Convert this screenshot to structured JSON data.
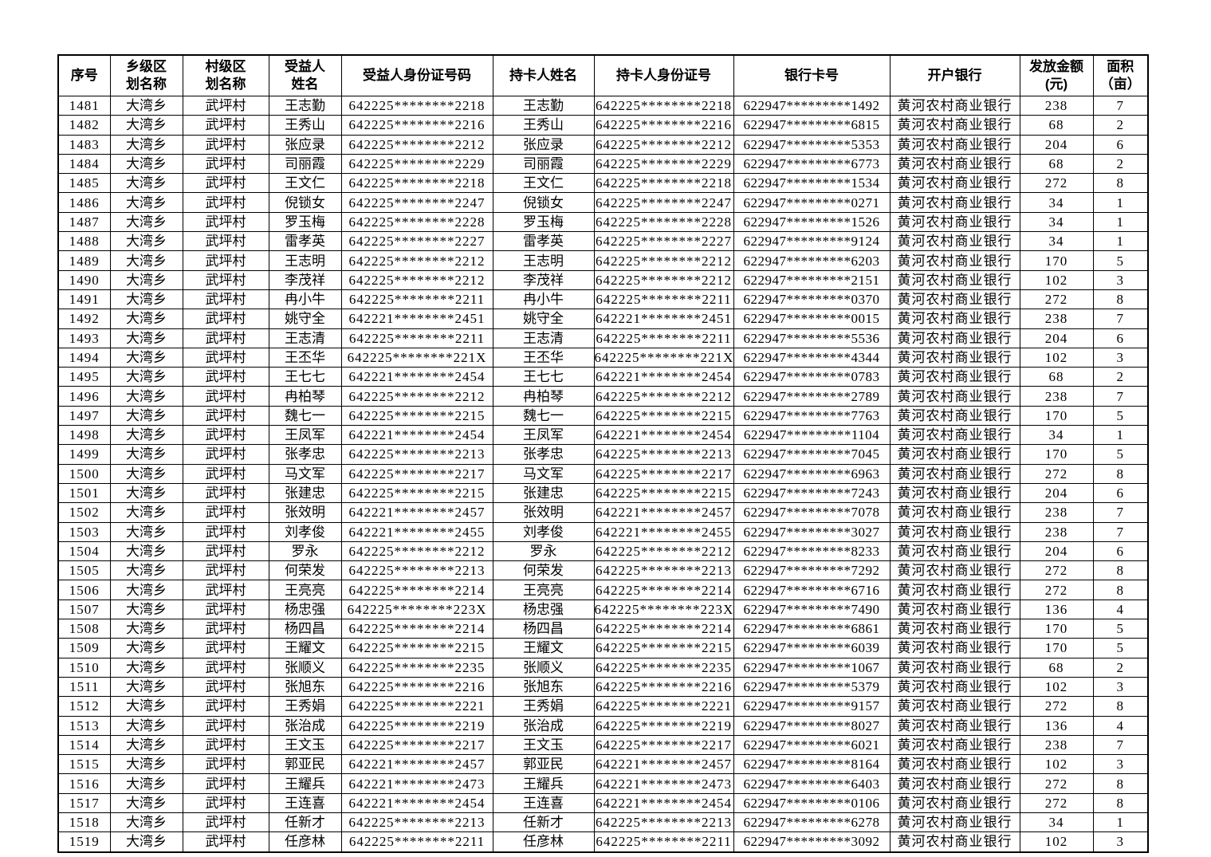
{
  "page": {
    "background_color": "#ffffff",
    "text_color": "#000000",
    "border_color": "#000000"
  },
  "table": {
    "headers": [
      "序号",
      "乡级区\n划名称",
      "村级区\n划名称",
      "受益人\n姓名",
      "受益人身份证号码",
      "持卡人姓名",
      "持卡人身份证号",
      "银行卡号",
      "开户银行",
      "发放金额\n(元)",
      "面积\n（亩）"
    ],
    "column_names": [
      "cell-serial-number",
      "cell-township-name",
      "cell-village-name",
      "cell-beneficiary-name",
      "cell-beneficiary-id-number",
      "cell-cardholder-name",
      "cell-cardholder-id-number",
      "cell-bank-card-number",
      "cell-bank-name",
      "cell-amount-yuan",
      "cell-area-mu"
    ],
    "rows": [
      [
        "1481",
        "大湾乡",
        "武坪村",
        "王志勤",
        "642225********2218",
        "王志勤",
        "642225********2218",
        "622947*********1492",
        "黄河农村商业银行",
        "238",
        "7"
      ],
      [
        "1482",
        "大湾乡",
        "武坪村",
        "王秀山",
        "642225********2216",
        "王秀山",
        "642225********2216",
        "622947*********6815",
        "黄河农村商业银行",
        "68",
        "2"
      ],
      [
        "1483",
        "大湾乡",
        "武坪村",
        "张应录",
        "642225********2212",
        "张应录",
        "642225********2212",
        "622947*********5353",
        "黄河农村商业银行",
        "204",
        "6"
      ],
      [
        "1484",
        "大湾乡",
        "武坪村",
        "司丽霞",
        "642225********2229",
        "司丽霞",
        "642225********2229",
        "622947*********6773",
        "黄河农村商业银行",
        "68",
        "2"
      ],
      [
        "1485",
        "大湾乡",
        "武坪村",
        "王文仁",
        "642225********2218",
        "王文仁",
        "642225********2218",
        "622947*********1534",
        "黄河农村商业银行",
        "272",
        "8"
      ],
      [
        "1486",
        "大湾乡",
        "武坪村",
        "倪锁女",
        "642225********2247",
        "倪锁女",
        "642225********2247",
        "622947*********0271",
        "黄河农村商业银行",
        "34",
        "1"
      ],
      [
        "1487",
        "大湾乡",
        "武坪村",
        "罗玉梅",
        "642225********2228",
        "罗玉梅",
        "642225********2228",
        "622947*********1526",
        "黄河农村商业银行",
        "34",
        "1"
      ],
      [
        "1488",
        "大湾乡",
        "武坪村",
        "雷孝英",
        "642225********2227",
        "雷孝英",
        "642225********2227",
        "622947*********9124",
        "黄河农村商业银行",
        "34",
        "1"
      ],
      [
        "1489",
        "大湾乡",
        "武坪村",
        "王志明",
        "642225********2212",
        "王志明",
        "642225********2212",
        "622947*********6203",
        "黄河农村商业银行",
        "170",
        "5"
      ],
      [
        "1490",
        "大湾乡",
        "武坪村",
        "李茂祥",
        "642225********2212",
        "李茂祥",
        "642225********2212",
        "622947*********2151",
        "黄河农村商业银行",
        "102",
        "3"
      ],
      [
        "1491",
        "大湾乡",
        "武坪村",
        "冉小牛",
        "642225********2211",
        "冉小牛",
        "642225********2211",
        "622947*********0370",
        "黄河农村商业银行",
        "272",
        "8"
      ],
      [
        "1492",
        "大湾乡",
        "武坪村",
        "姚守全",
        "642221********2451",
        "姚守全",
        "642221********2451",
        "622947*********0015",
        "黄河农村商业银行",
        "238",
        "7"
      ],
      [
        "1493",
        "大湾乡",
        "武坪村",
        "王志清",
        "642225********2211",
        "王志清",
        "642225********2211",
        "622947*********5536",
        "黄河农村商业银行",
        "204",
        "6"
      ],
      [
        "1494",
        "大湾乡",
        "武坪村",
        "王丕华",
        "642225********221X",
        "王丕华",
        "642225********221X",
        "622947*********4344",
        "黄河农村商业银行",
        "102",
        "3"
      ],
      [
        "1495",
        "大湾乡",
        "武坪村",
        "王七七",
        "642221********2454",
        "王七七",
        "642221********2454",
        "622947*********0783",
        "黄河农村商业银行",
        "68",
        "2"
      ],
      [
        "1496",
        "大湾乡",
        "武坪村",
        "冉柏琴",
        "642225********2212",
        "冉柏琴",
        "642225********2212",
        "622947*********2789",
        "黄河农村商业银行",
        "238",
        "7"
      ],
      [
        "1497",
        "大湾乡",
        "武坪村",
        "魏七一",
        "642225********2215",
        "魏七一",
        "642225********2215",
        "622947*********7763",
        "黄河农村商业银行",
        "170",
        "5"
      ],
      [
        "1498",
        "大湾乡",
        "武坪村",
        "王凤军",
        "642221********2454",
        "王凤军",
        "642221********2454",
        "622947*********1104",
        "黄河农村商业银行",
        "34",
        "1"
      ],
      [
        "1499",
        "大湾乡",
        "武坪村",
        "张孝忠",
        "642225********2213",
        "张孝忠",
        "642225********2213",
        "622947*********7045",
        "黄河农村商业银行",
        "170",
        "5"
      ],
      [
        "1500",
        "大湾乡",
        "武坪村",
        "马文军",
        "642225********2217",
        "马文军",
        "642225********2217",
        "622947*********6963",
        "黄河农村商业银行",
        "272",
        "8"
      ],
      [
        "1501",
        "大湾乡",
        "武坪村",
        "张建忠",
        "642225********2215",
        "张建忠",
        "642225********2215",
        "622947*********7243",
        "黄河农村商业银行",
        "204",
        "6"
      ],
      [
        "1502",
        "大湾乡",
        "武坪村",
        "张效明",
        "642221********2457",
        "张效明",
        "642221********2457",
        "622947*********7078",
        "黄河农村商业银行",
        "238",
        "7"
      ],
      [
        "1503",
        "大湾乡",
        "武坪村",
        "刘孝俊",
        "642221********2455",
        "刘孝俊",
        "642221********2455",
        "622947*********3027",
        "黄河农村商业银行",
        "238",
        "7"
      ],
      [
        "1504",
        "大湾乡",
        "武坪村",
        "罗永",
        "642225********2212",
        "罗永",
        "642225********2212",
        "622947*********8233",
        "黄河农村商业银行",
        "204",
        "6"
      ],
      [
        "1505",
        "大湾乡",
        "武坪村",
        "何荣发",
        "642225********2213",
        "何荣发",
        "642225********2213",
        "622947*********7292",
        "黄河农村商业银行",
        "272",
        "8"
      ],
      [
        "1506",
        "大湾乡",
        "武坪村",
        "王亮亮",
        "642225********2214",
        "王亮亮",
        "642225********2214",
        "622947*********6716",
        "黄河农村商业银行",
        "272",
        "8"
      ],
      [
        "1507",
        "大湾乡",
        "武坪村",
        "杨忠强",
        "642225********223X",
        "杨忠强",
        "642225********223X",
        "622947*********7490",
        "黄河农村商业银行",
        "136",
        "4"
      ],
      [
        "1508",
        "大湾乡",
        "武坪村",
        "杨四昌",
        "642225********2214",
        "杨四昌",
        "642225********2214",
        "622947*********6861",
        "黄河农村商业银行",
        "170",
        "5"
      ],
      [
        "1509",
        "大湾乡",
        "武坪村",
        "王耀文",
        "642225********2215",
        "王耀文",
        "642225********2215",
        "622947*********6039",
        "黄河农村商业银行",
        "170",
        "5"
      ],
      [
        "1510",
        "大湾乡",
        "武坪村",
        "张顺义",
        "642225********2235",
        "张顺义",
        "642225********2235",
        "622947*********1067",
        "黄河农村商业银行",
        "68",
        "2"
      ],
      [
        "1511",
        "大湾乡",
        "武坪村",
        "张旭东",
        "642225********2216",
        "张旭东",
        "642225********2216",
        "622947*********5379",
        "黄河农村商业银行",
        "102",
        "3"
      ],
      [
        "1512",
        "大湾乡",
        "武坪村",
        "王秀娟",
        "642225********2221",
        "王秀娟",
        "642225********2221",
        "622947*********9157",
        "黄河农村商业银行",
        "272",
        "8"
      ],
      [
        "1513",
        "大湾乡",
        "武坪村",
        "张治成",
        "642225********2219",
        "张治成",
        "642225********2219",
        "622947*********8027",
        "黄河农村商业银行",
        "136",
        "4"
      ],
      [
        "1514",
        "大湾乡",
        "武坪村",
        "王文玉",
        "642225********2217",
        "王文玉",
        "642225********2217",
        "622947*********6021",
        "黄河农村商业银行",
        "238",
        "7"
      ],
      [
        "1515",
        "大湾乡",
        "武坪村",
        "郭亚民",
        "642221********2457",
        "郭亚民",
        "642221********2457",
        "622947*********8164",
        "黄河农村商业银行",
        "102",
        "3"
      ],
      [
        "1516",
        "大湾乡",
        "武坪村",
        "王耀兵",
        "642221********2473",
        "王耀兵",
        "642221********2473",
        "622947*********6403",
        "黄河农村商业银行",
        "272",
        "8"
      ],
      [
        "1517",
        "大湾乡",
        "武坪村",
        "王连喜",
        "642221********2454",
        "王连喜",
        "642221********2454",
        "622947*********0106",
        "黄河农村商业银行",
        "272",
        "8"
      ],
      [
        "1518",
        "大湾乡",
        "武坪村",
        "任新才",
        "642225********2213",
        "任新才",
        "642225********2213",
        "622947*********6278",
        "黄河农村商业银行",
        "34",
        "1"
      ],
      [
        "1519",
        "大湾乡",
        "武坪村",
        "任彦林",
        "642225********2211",
        "任彦林",
        "642225********2211",
        "622947*********3092",
        "黄河农村商业银行",
        "102",
        "3"
      ]
    ]
  }
}
